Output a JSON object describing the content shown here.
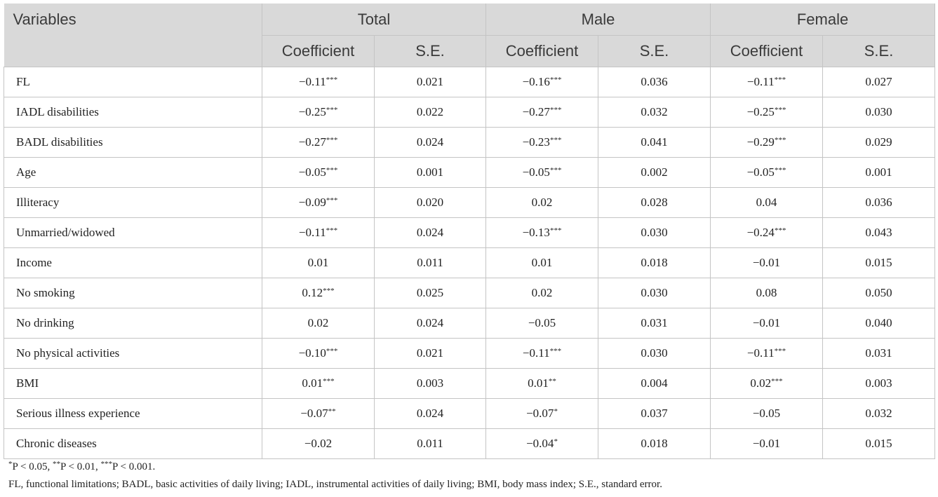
{
  "table": {
    "columns": [
      "Variables",
      "Total",
      "Male",
      "Female"
    ],
    "subcolumns": [
      "Coefficient",
      "S.E.",
      "Coefficient",
      "S.E.",
      "Coefficient",
      "S.E."
    ],
    "rows": [
      [
        "FL",
        "−0.11***",
        "0.021",
        "−0.16***",
        "0.036",
        "−0.11***",
        "0.027"
      ],
      [
        "IADL disabilities",
        "−0.25***",
        "0.022",
        "−0.27***",
        "0.032",
        "−0.25***",
        "0.030"
      ],
      [
        "BADL disabilities",
        "−0.27***",
        "0.024",
        "−0.23***",
        "0.041",
        "−0.29***",
        "0.029"
      ],
      [
        "Age",
        "−0.05***",
        "0.001",
        "−0.05***",
        "0.002",
        "−0.05***",
        "0.001"
      ],
      [
        "Illiteracy",
        "−0.09***",
        "0.020",
        "0.02",
        "0.028",
        "0.04",
        "0.036"
      ],
      [
        "Unmarried/widowed",
        "−0.11***",
        "0.024",
        "−0.13***",
        "0.030",
        "−0.24***",
        "0.043"
      ],
      [
        "Income",
        "0.01",
        "0.011",
        "0.01",
        "0.018",
        "−0.01",
        "0.015"
      ],
      [
        "No smoking",
        "0.12***",
        "0.025",
        "0.02",
        "0.030",
        "0.08",
        "0.050"
      ],
      [
        "No drinking",
        "0.02",
        "0.024",
        "−0.05",
        "0.031",
        "−0.01",
        "0.040"
      ],
      [
        "No physical activities",
        "−0.10***",
        "0.021",
        "−0.11***",
        "0.030",
        "−0.11***",
        "0.031"
      ],
      [
        "BMI",
        "0.01***",
        "0.003",
        "0.01**",
        "0.004",
        "0.02***",
        "0.003"
      ],
      [
        "Serious illness experience",
        "−0.07**",
        "0.024",
        "−0.07*",
        "0.037",
        "−0.05",
        "0.032"
      ],
      [
        "Chronic diseases",
        "−0.02",
        "0.011",
        "−0.04*",
        "0.018",
        "−0.01",
        "0.015"
      ]
    ]
  },
  "footnotes": [
    "*P < 0.05, **P < 0.01, ***P < 0.001.",
    "FL, functional limitations; BADL, basic activities of daily living; IADL, instrumental activities of daily living; BMI, body mass index; S.E., standard error."
  ]
}
